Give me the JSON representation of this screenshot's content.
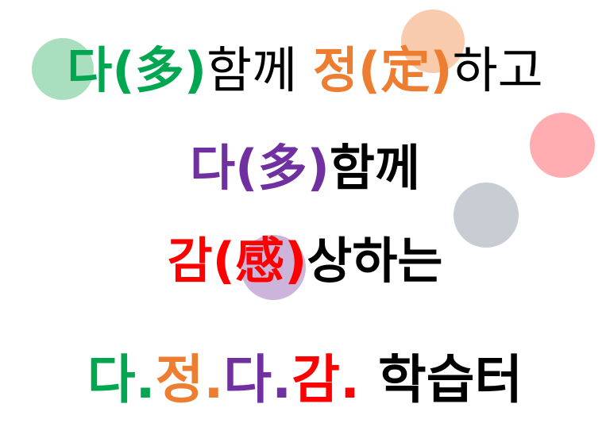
{
  "colors": {
    "green": "#00a650",
    "orange": "#ed7d31",
    "purple": "#7030a0",
    "red": "#ff0000",
    "black": "#000000",
    "circle_green": "#a9dfbf",
    "circle_peach": "#f8cbad",
    "circle_pink": "#ffadb0",
    "circle_gray": "#c8ccd3",
    "circle_lavender": "#cdb4db"
  },
  "line1": {
    "part1": "다(多)",
    "part2": "함께 ",
    "part3": "정(定)",
    "part4": "하고"
  },
  "line2": {
    "part1": "다(多)",
    "part2": "함께"
  },
  "line3": {
    "part1": "감(感)",
    "part2": "상하는"
  },
  "line4": {
    "part1": "다.",
    "part2": "정.",
    "part3": "다.",
    "part4": "감.",
    "part5": " 학습터"
  }
}
